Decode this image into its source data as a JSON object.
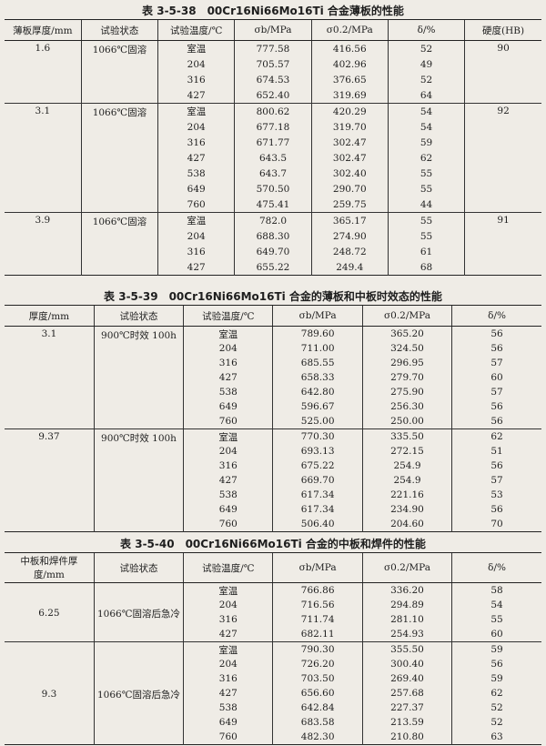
{
  "tables": [
    {
      "title": "表 3-5-38　00Cr16Ni66Mo16Ti 合金薄板的性能",
      "headers": [
        "薄板厚度/mm",
        "试验状态",
        "试验温度/℃",
        "σb/MPa",
        "σ0.2/MPa",
        "δ/%",
        "硬度(HB)"
      ],
      "groups": [
        {
          "thickness": "1.6",
          "state": "1066℃固溶",
          "hardness": "90",
          "rows": [
            [
              "室温",
              "777.58",
              "416.56",
              "52"
            ],
            [
              "204",
              "705.57",
              "402.96",
              "49"
            ],
            [
              "316",
              "674.53",
              "376.65",
              "52"
            ],
            [
              "427",
              "652.40",
              "319.69",
              "64"
            ]
          ]
        },
        {
          "thickness": "3.1",
          "state": "1066℃固溶",
          "hardness": "92",
          "rows": [
            [
              "室温",
              "800.62",
              "420.29",
              "54"
            ],
            [
              "204",
              "677.18",
              "319.70",
              "54"
            ],
            [
              "316",
              "671.77",
              "302.47",
              "59"
            ],
            [
              "427",
              "643.5",
              "302.47",
              "62"
            ],
            [
              "538",
              "643.7",
              "302.40",
              "55"
            ],
            [
              "649",
              "570.50",
              "290.70",
              "55"
            ],
            [
              "760",
              "475.41",
              "259.75",
              "44"
            ]
          ]
        },
        {
          "thickness": "3.9",
          "state": "1066℃固溶",
          "hardness": "91",
          "rows": [
            [
              "室温",
              "782.0",
              "365.17",
              "55"
            ],
            [
              "204",
              "688.30",
              "274.90",
              "55"
            ],
            [
              "316",
              "649.70",
              "248.72",
              "61"
            ],
            [
              "427",
              "655.22",
              "249.4",
              "68"
            ]
          ]
        }
      ]
    },
    {
      "title": "表 3-5-39　00Cr16Ni66Mo16Ti 合金的薄板和中板时效态的性能",
      "headers": [
        "厚度/mm",
        "试验状态",
        "试验温度/℃",
        "σb/MPa",
        "σ0.2/MPa",
        "δ/%"
      ],
      "groups": [
        {
          "thickness": "3.1",
          "state": "900℃时效 100h",
          "rows": [
            [
              "室温",
              "789.60",
              "365.20",
              "56"
            ],
            [
              "204",
              "711.00",
              "324.50",
              "56"
            ],
            [
              "316",
              "685.55",
              "296.95",
              "57"
            ],
            [
              "427",
              "658.33",
              "279.70",
              "60"
            ],
            [
              "538",
              "642.80",
              "275.90",
              "57"
            ],
            [
              "649",
              "596.67",
              "256.30",
              "56"
            ],
            [
              "760",
              "525.00",
              "250.00",
              "56"
            ]
          ]
        },
        {
          "thickness": "9.37",
          "state": "900℃时效 100h",
          "rows": [
            [
              "室温",
              "770.30",
              "335.50",
              "62"
            ],
            [
              "204",
              "693.13",
              "272.15",
              "51"
            ],
            [
              "316",
              "675.22",
              "254.9",
              "56"
            ],
            [
              "427",
              "669.70",
              "254.9",
              "57"
            ],
            [
              "538",
              "617.34",
              "221.16",
              "53"
            ],
            [
              "649",
              "617.34",
              "234.90",
              "56"
            ],
            [
              "760",
              "506.40",
              "204.60",
              "70"
            ]
          ]
        }
      ]
    },
    {
      "title": "表 3-5-40　00Cr16Ni66Mo16Ti 合金的中板和焊件的性能",
      "headers": [
        "中板和焊件厚度/mm",
        "试验状态",
        "试验温度/℃",
        "σb/MPa",
        "σ0.2/MPa",
        "δ/%"
      ],
      "groups": [
        {
          "thickness": "6.25",
          "state": "1066℃固溶后急冷",
          "rows": [
            [
              "室温",
              "766.86",
              "336.20",
              "58"
            ],
            [
              "204",
              "716.56",
              "294.89",
              "54"
            ],
            [
              "316",
              "711.74",
              "281.10",
              "55"
            ],
            [
              "427",
              "682.11",
              "254.93",
              "60"
            ]
          ]
        },
        {
          "thickness": "9.3",
          "state": "1066℃固溶后急冷",
          "rows": [
            [
              "室温",
              "790.30",
              "355.50",
              "59"
            ],
            [
              "204",
              "726.20",
              "300.40",
              "56"
            ],
            [
              "316",
              "703.50",
              "269.40",
              "59"
            ],
            [
              "427",
              "656.60",
              "257.68",
              "62"
            ],
            [
              "538",
              "642.84",
              "227.37",
              "52"
            ],
            [
              "649",
              "683.58",
              "213.59",
              "52"
            ],
            [
              "760",
              "482.30",
              "210.80",
              "63"
            ]
          ]
        }
      ]
    }
  ]
}
